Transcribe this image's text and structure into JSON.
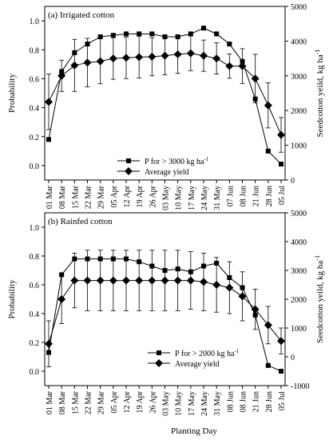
{
  "figure": {
    "xlabel": "Planting Day"
  },
  "chart_data": [
    {
      "type": "line",
      "panel_label": "(a) Irrigated cotton",
      "categories": [
        "01 Mar",
        "08 Mar",
        "15 Mar",
        "22 Mar",
        "29 Mar",
        "05 Apr",
        "12 Apr",
        "19 Apr",
        "26 Apr",
        "03 May",
        "10 May",
        "17 May",
        "24 May",
        "31 May",
        "07 Jun",
        "08 Jun",
        "21 Jun",
        "28 Jun",
        "05 Jul"
      ],
      "ylabel_left": "Probability",
      "ylabel_right": "Seedcotton yeild, kg ha",
      "ylabel_right_sup": "-1",
      "ylim_left": [
        -0.1,
        1.1
      ],
      "yticks_left": [
        "0.0",
        "0.2",
        "0.4",
        "0.6",
        "0.8",
        "1.0"
      ],
      "ylim_right": [
        0,
        5000
      ],
      "yticks_right": [
        "0",
        "1000",
        "2000",
        "3000",
        "4000",
        "5000"
      ],
      "legend_position": "bottom-center",
      "series": [
        {
          "name": "P for > 3000 kg ha",
          "name_sup": "-1",
          "marker": "square",
          "axis": "left",
          "values": [
            0.18,
            0.65,
            0.78,
            0.84,
            0.89,
            0.9,
            0.91,
            0.91,
            0.91,
            0.89,
            0.89,
            0.91,
            0.95,
            0.91,
            0.84,
            0.72,
            0.46,
            0.1,
            0.01
          ]
        },
        {
          "name": "Average yield",
          "marker": "diamond",
          "axis": "right",
          "values": [
            2250,
            3000,
            3300,
            3380,
            3420,
            3500,
            3520,
            3540,
            3550,
            3580,
            3620,
            3650,
            3580,
            3500,
            3280,
            3280,
            2920,
            2150,
            1300
          ],
          "error": [
            800,
            450,
            750,
            700,
            650,
            600,
            600,
            600,
            550,
            550,
            550,
            500,
            450,
            450,
            350,
            500,
            700,
            650,
            500
          ]
        }
      ]
    },
    {
      "type": "line",
      "panel_label": "(b) Rainfed cotton",
      "categories": [
        "01 Mar",
        "08 Mar",
        "15 Mar",
        "22 Mar",
        "29 Mar",
        "05 Apr",
        "12 Apr",
        "19 Apr",
        "26 Apr",
        "03 May",
        "10 May",
        "17 May",
        "24 May",
        "31 May",
        "08 Jun",
        "08 Jun",
        "21 Jun",
        "28 Jun",
        "05 Jul"
      ],
      "ylabel_left": "Probability",
      "ylabel_right": "Seedcotton yeild, kg ha",
      "ylabel_right_sup": "-1",
      "ylim_left": [
        -0.1,
        1.1
      ],
      "yticks_left": [
        "0.0",
        "0.2",
        "0.4",
        "0.6",
        "0.8",
        "1.0"
      ],
      "ylim_right": [
        -1000,
        5000
      ],
      "yticks_right": [
        "-1000",
        "0",
        "1000",
        "2000",
        "3000",
        "4000",
        "5000"
      ],
      "legend_position": "bottom-right",
      "series": [
        {
          "name": "P for > 2000 kg ha",
          "name_sup": "-1",
          "marker": "square",
          "axis": "left",
          "values": [
            0.13,
            0.67,
            0.78,
            0.78,
            0.78,
            0.78,
            0.78,
            0.76,
            0.73,
            0.7,
            0.71,
            0.69,
            0.73,
            0.75,
            0.65,
            0.58,
            0.39,
            0.04,
            0.0
          ]
        },
        {
          "name": "Average yield",
          "marker": "diamond",
          "axis": "right",
          "values": [
            450,
            2000,
            2650,
            2650,
            2650,
            2650,
            2650,
            2650,
            2650,
            2650,
            2650,
            2650,
            2600,
            2500,
            2400,
            2100,
            1650,
            1100,
            550
          ],
          "error": [
            800,
            850,
            950,
            1050,
            1050,
            1050,
            1050,
            1050,
            1050,
            1050,
            1050,
            1000,
            1000,
            950,
            900,
            850,
            700,
            650,
            450
          ]
        }
      ]
    }
  ]
}
